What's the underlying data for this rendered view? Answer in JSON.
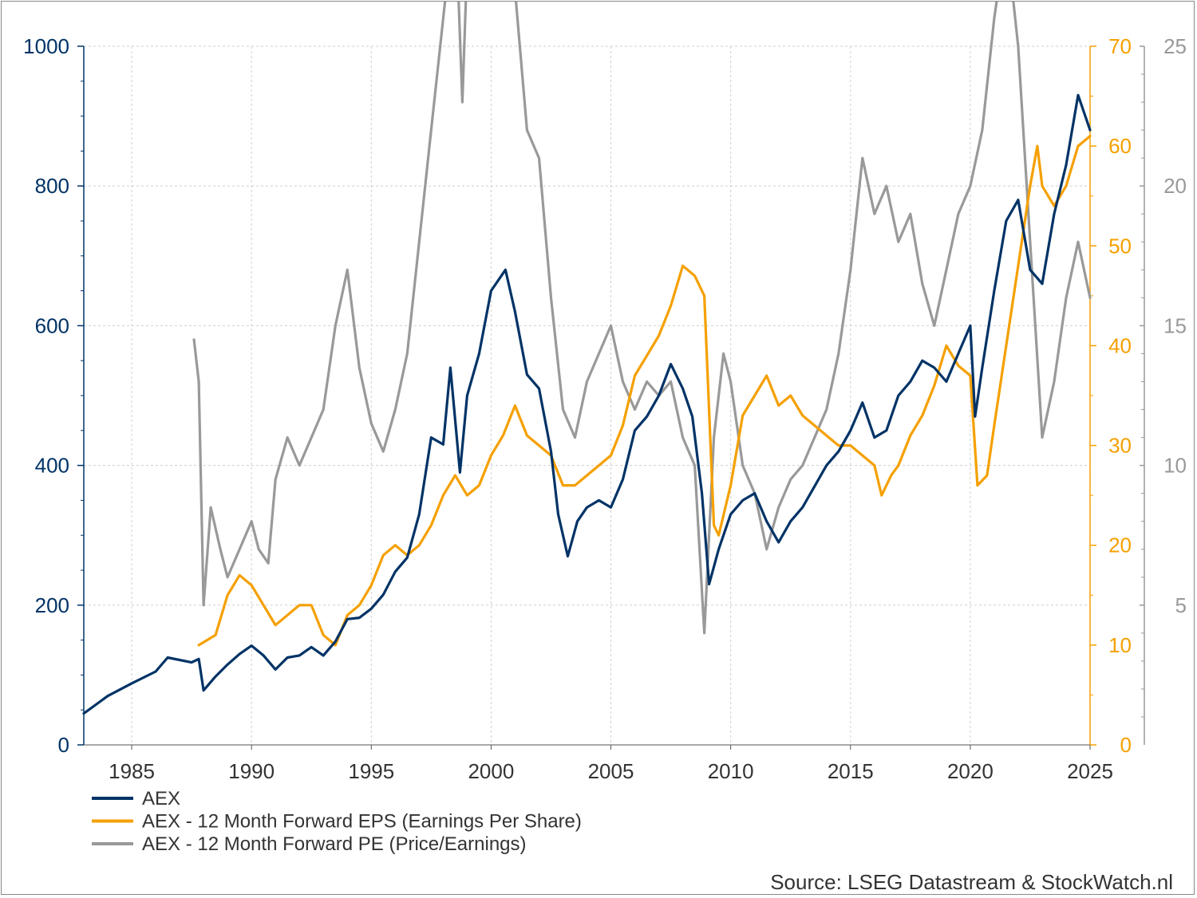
{
  "chart_data": {
    "type": "line",
    "x_ticks": [
      "1985",
      "1990",
      "1995",
      "2000",
      "2005",
      "2010",
      "2015",
      "2020",
      "2025"
    ],
    "xlim": [
      1983,
      2025
    ],
    "y_left": {
      "ticks": [
        "0",
        "200",
        "400",
        "600",
        "800",
        "1000"
      ],
      "lim": [
        0,
        1000
      ],
      "color": "#003366"
    },
    "y_right1": {
      "ticks": [
        "0",
        "10",
        "20",
        "30",
        "40",
        "50",
        "60",
        "70"
      ],
      "lim": [
        0,
        70
      ],
      "color": "#f5a000"
    },
    "y_right2": {
      "ticks": [
        "5",
        "10",
        "15",
        "20",
        "25"
      ],
      "lim": [
        0,
        25
      ],
      "color": "#999999"
    },
    "grid": true,
    "legend_position": "bottom-left",
    "series": [
      {
        "name": "AEX",
        "axis": "left",
        "color": "#003366",
        "points": [
          [
            1983.0,
            45
          ],
          [
            1984.0,
            70
          ],
          [
            1985.0,
            88
          ],
          [
            1986.0,
            105
          ],
          [
            1986.5,
            125
          ],
          [
            1987.5,
            118
          ],
          [
            1987.8,
            123
          ],
          [
            1988.0,
            78
          ],
          [
            1988.5,
            98
          ],
          [
            1989.0,
            115
          ],
          [
            1989.5,
            130
          ],
          [
            1990.0,
            142
          ],
          [
            1990.5,
            128
          ],
          [
            1991.0,
            108
          ],
          [
            1991.5,
            125
          ],
          [
            1992.0,
            128
          ],
          [
            1992.5,
            140
          ],
          [
            1993.0,
            128
          ],
          [
            1993.5,
            148
          ],
          [
            1994.0,
            180
          ],
          [
            1994.5,
            182
          ],
          [
            1995.0,
            195
          ],
          [
            1995.5,
            215
          ],
          [
            1996.0,
            248
          ],
          [
            1996.5,
            268
          ],
          [
            1997.0,
            330
          ],
          [
            1997.5,
            440
          ],
          [
            1998.0,
            430
          ],
          [
            1998.3,
            540
          ],
          [
            1998.7,
            390
          ],
          [
            1999.0,
            500
          ],
          [
            1999.5,
            560
          ],
          [
            2000.0,
            650
          ],
          [
            2000.6,
            680
          ],
          [
            2001.0,
            620
          ],
          [
            2001.5,
            530
          ],
          [
            2002.0,
            510
          ],
          [
            2002.5,
            420
          ],
          [
            2002.8,
            330
          ],
          [
            2003.2,
            270
          ],
          [
            2003.6,
            320
          ],
          [
            2004.0,
            340
          ],
          [
            2004.5,
            350
          ],
          [
            2005.0,
            340
          ],
          [
            2005.5,
            380
          ],
          [
            2006.0,
            450
          ],
          [
            2006.5,
            470
          ],
          [
            2007.0,
            500
          ],
          [
            2007.5,
            545
          ],
          [
            2008.0,
            510
          ],
          [
            2008.4,
            470
          ],
          [
            2008.8,
            360
          ],
          [
            2009.1,
            230
          ],
          [
            2009.5,
            280
          ],
          [
            2010.0,
            330
          ],
          [
            2010.5,
            350
          ],
          [
            2011.0,
            360
          ],
          [
            2011.5,
            320
          ],
          [
            2012.0,
            290
          ],
          [
            2012.5,
            320
          ],
          [
            2013.0,
            340
          ],
          [
            2013.5,
            370
          ],
          [
            2014.0,
            400
          ],
          [
            2014.5,
            420
          ],
          [
            2015.0,
            450
          ],
          [
            2015.5,
            490
          ],
          [
            2016.0,
            440
          ],
          [
            2016.5,
            450
          ],
          [
            2017.0,
            500
          ],
          [
            2017.5,
            520
          ],
          [
            2018.0,
            550
          ],
          [
            2018.5,
            540
          ],
          [
            2019.0,
            520
          ],
          [
            2019.5,
            560
          ],
          [
            2020.0,
            600
          ],
          [
            2020.2,
            470
          ],
          [
            2020.5,
            540
          ],
          [
            2021.0,
            650
          ],
          [
            2021.5,
            750
          ],
          [
            2022.0,
            780
          ],
          [
            2022.5,
            680
          ],
          [
            2023.0,
            660
          ],
          [
            2023.5,
            760
          ],
          [
            2024.0,
            830
          ],
          [
            2024.5,
            930
          ],
          [
            2025.0,
            880
          ]
        ]
      },
      {
        "name": "AEX - 12 Month Forward EPS (Earnings Per Share)",
        "axis": "right1",
        "color": "#f5a000",
        "points": [
          [
            1987.8,
            10
          ],
          [
            1988.5,
            11
          ],
          [
            1989.0,
            15
          ],
          [
            1989.5,
            17
          ],
          [
            1990.0,
            16
          ],
          [
            1990.5,
            14
          ],
          [
            1991.0,
            12
          ],
          [
            1991.5,
            13
          ],
          [
            1992.0,
            14
          ],
          [
            1992.5,
            14
          ],
          [
            1993.0,
            11
          ],
          [
            1993.5,
            10
          ],
          [
            1994.0,
            13
          ],
          [
            1994.5,
            14
          ],
          [
            1995.0,
            16
          ],
          [
            1995.5,
            19
          ],
          [
            1996.0,
            20
          ],
          [
            1996.5,
            19
          ],
          [
            1997.0,
            20
          ],
          [
            1997.5,
            22
          ],
          [
            1998.0,
            25
          ],
          [
            1998.5,
            27
          ],
          [
            1999.0,
            25
          ],
          [
            1999.5,
            26
          ],
          [
            2000.0,
            29
          ],
          [
            2000.5,
            31
          ],
          [
            2001.0,
            34
          ],
          [
            2001.5,
            31
          ],
          [
            2002.0,
            30
          ],
          [
            2002.5,
            29
          ],
          [
            2003.0,
            26
          ],
          [
            2003.5,
            26
          ],
          [
            2004.0,
            27
          ],
          [
            2004.5,
            28
          ],
          [
            2005.0,
            29
          ],
          [
            2005.5,
            32
          ],
          [
            2006.0,
            37
          ],
          [
            2006.5,
            39
          ],
          [
            2007.0,
            41
          ],
          [
            2007.5,
            44
          ],
          [
            2008.0,
            48
          ],
          [
            2008.5,
            47
          ],
          [
            2008.9,
            45
          ],
          [
            2009.3,
            22
          ],
          [
            2009.5,
            21
          ],
          [
            2010.0,
            26
          ],
          [
            2010.5,
            33
          ],
          [
            2011.0,
            35
          ],
          [
            2011.5,
            37
          ],
          [
            2012.0,
            34
          ],
          [
            2012.5,
            35
          ],
          [
            2013.0,
            33
          ],
          [
            2013.5,
            32
          ],
          [
            2014.0,
            31
          ],
          [
            2014.5,
            30
          ],
          [
            2015.0,
            30
          ],
          [
            2015.5,
            29
          ],
          [
            2016.0,
            28
          ],
          [
            2016.3,
            25
          ],
          [
            2016.7,
            27
          ],
          [
            2017.0,
            28
          ],
          [
            2017.5,
            31
          ],
          [
            2018.0,
            33
          ],
          [
            2018.5,
            36
          ],
          [
            2019.0,
            40
          ],
          [
            2019.5,
            38
          ],
          [
            2020.0,
            37
          ],
          [
            2020.3,
            26
          ],
          [
            2020.7,
            27
          ],
          [
            2021.0,
            32
          ],
          [
            2021.5,
            40
          ],
          [
            2022.0,
            48
          ],
          [
            2022.5,
            56
          ],
          [
            2022.8,
            60
          ],
          [
            2023.0,
            56
          ],
          [
            2023.5,
            54
          ],
          [
            2024.0,
            56
          ],
          [
            2024.5,
            60
          ],
          [
            2025.0,
            61
          ]
        ]
      },
      {
        "name": "AEX - 12 Month Forward PE (Price/Earnings)",
        "axis": "right2",
        "color": "#999999",
        "points": [
          [
            1987.6,
            14.5
          ],
          [
            1987.8,
            13
          ],
          [
            1988.0,
            5
          ],
          [
            1988.3,
            8.5
          ],
          [
            1988.7,
            7
          ],
          [
            1989.0,
            6
          ],
          [
            1989.5,
            7
          ],
          [
            1990.0,
            8
          ],
          [
            1990.3,
            7
          ],
          [
            1990.7,
            6.5
          ],
          [
            1991.0,
            9.5
          ],
          [
            1991.5,
            11
          ],
          [
            1992.0,
            10
          ],
          [
            1992.5,
            11
          ],
          [
            1993.0,
            12
          ],
          [
            1993.5,
            15
          ],
          [
            1994.0,
            17
          ],
          [
            1994.5,
            13.5
          ],
          [
            1995.0,
            11.5
          ],
          [
            1995.5,
            10.5
          ],
          [
            1996.0,
            12
          ],
          [
            1996.5,
            14
          ],
          [
            1997.0,
            18
          ],
          [
            1997.5,
            22
          ],
          [
            1998.0,
            26
          ],
          [
            1998.5,
            30
          ],
          [
            1998.8,
            23
          ],
          [
            1999.0,
            28
          ],
          [
            1999.5,
            30
          ],
          [
            2000.0,
            28
          ],
          [
            2000.5,
            31
          ],
          [
            2001.0,
            27
          ],
          [
            2001.5,
            22
          ],
          [
            2002.0,
            21
          ],
          [
            2002.5,
            16
          ],
          [
            2003.0,
            12
          ],
          [
            2003.5,
            11
          ],
          [
            2004.0,
            13
          ],
          [
            2004.5,
            14
          ],
          [
            2005.0,
            15
          ],
          [
            2005.5,
            13
          ],
          [
            2006.0,
            12
          ],
          [
            2006.5,
            13
          ],
          [
            2007.0,
            12.5
          ],
          [
            2007.5,
            13
          ],
          [
            2008.0,
            11
          ],
          [
            2008.5,
            10
          ],
          [
            2008.9,
            4
          ],
          [
            2009.3,
            11
          ],
          [
            2009.7,
            14
          ],
          [
            2010.0,
            13
          ],
          [
            2010.5,
            10
          ],
          [
            2011.0,
            9
          ],
          [
            2011.5,
            7
          ],
          [
            2012.0,
            8.5
          ],
          [
            2012.5,
            9.5
          ],
          [
            2013.0,
            10
          ],
          [
            2013.5,
            11
          ],
          [
            2014.0,
            12
          ],
          [
            2014.5,
            14
          ],
          [
            2015.0,
            17
          ],
          [
            2015.5,
            21
          ],
          [
            2016.0,
            19
          ],
          [
            2016.5,
            20
          ],
          [
            2017.0,
            18
          ],
          [
            2017.5,
            19
          ],
          [
            2018.0,
            16.5
          ],
          [
            2018.5,
            15
          ],
          [
            2019.0,
            17
          ],
          [
            2019.5,
            19
          ],
          [
            2020.0,
            20
          ],
          [
            2020.5,
            22
          ],
          [
            2021.0,
            26
          ],
          [
            2021.5,
            29
          ],
          [
            2022.0,
            25
          ],
          [
            2022.5,
            18
          ],
          [
            2023.0,
            11
          ],
          [
            2023.5,
            13
          ],
          [
            2024.0,
            16
          ],
          [
            2024.5,
            18
          ],
          [
            2025.0,
            16
          ]
        ]
      }
    ],
    "source": "Source: LSEG Datastream & StockWatch.nl"
  }
}
